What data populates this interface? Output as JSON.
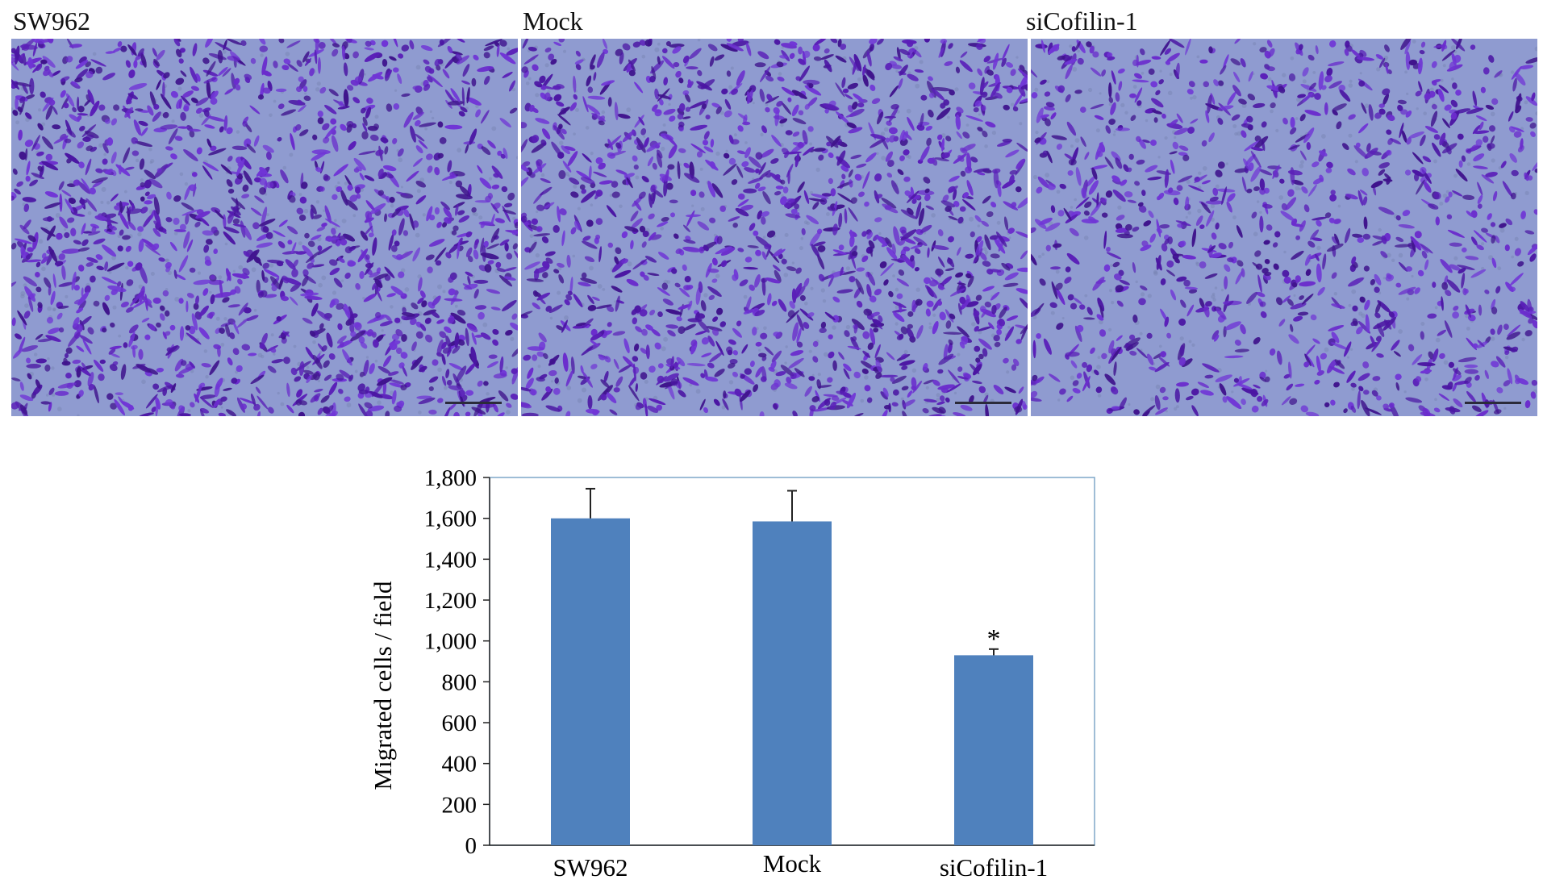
{
  "panels": [
    {
      "label": "SW962"
    },
    {
      "label": "Mock"
    },
    {
      "label": "siCofilin-1"
    }
  ],
  "colors": {
    "micro_background": "#8f9bd0",
    "cell_stain": "#5a1fb8",
    "bar": "#4f81bd",
    "frame": "#7fa7c9"
  },
  "chart_data": {
    "type": "bar",
    "title": "",
    "xlabel": "",
    "ylabel": "Migrated cells / field",
    "categories": [
      "SW962",
      "Mock",
      "siCofilin-1"
    ],
    "values": [
      1600,
      1585,
      930
    ],
    "error": [
      145,
      150,
      30
    ],
    "annotations": [
      "",
      "",
      "*"
    ],
    "ylim": [
      0,
      1800
    ],
    "yticks": [
      0,
      200,
      400,
      600,
      800,
      1000,
      1200,
      1400,
      1600,
      1800
    ],
    "ytick_labels": [
      "0",
      "200",
      "400",
      "600",
      "800",
      "1,000",
      "1,200",
      "1,400",
      "1,600",
      "1,800"
    ],
    "grid": false,
    "legend": "none"
  }
}
